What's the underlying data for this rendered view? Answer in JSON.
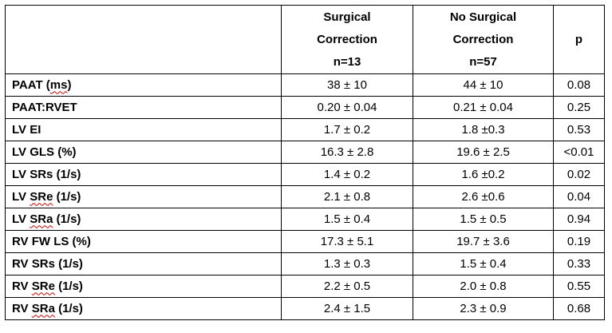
{
  "table": {
    "headers": [
      {
        "lines": [
          ""
        ]
      },
      {
        "lines": [
          "Surgical",
          "Correction",
          "n=13"
        ]
      },
      {
        "lines": [
          "No Surgical",
          "Correction",
          "n=57"
        ]
      },
      {
        "lines": [
          "p"
        ]
      }
    ],
    "rows": [
      {
        "label_pre": "PAAT (",
        "label_squiggle": "ms",
        "label_post": ")",
        "c1": "38 ± 10",
        "c2": "44 ± 10",
        "p": "0.08"
      },
      {
        "label_pre": "PAAT:RVET",
        "label_squiggle": "",
        "label_post": "",
        "c1": "0.20 ± 0.04",
        "c2": "0.21 ± 0.04",
        "p": "0.25"
      },
      {
        "label_pre": "LV EI",
        "label_squiggle": "",
        "label_post": "",
        "c1": "1.7 ± 0.2",
        "c2": "1.8 ±0.3",
        "p": "0.53"
      },
      {
        "label_pre": "LV GLS (%)",
        "label_squiggle": "",
        "label_post": "",
        "c1": "16.3 ± 2.8",
        "c2": "19.6 ± 2.5",
        "p": "<0.01"
      },
      {
        "label_pre": "LV SRs (1/s)",
        "label_squiggle": "",
        "label_post": "",
        "c1": "1.4 ± 0.2",
        "c2": "1.6 ±0.2",
        "p": "0.02"
      },
      {
        "label_pre": "LV ",
        "label_squiggle": "SRe",
        "label_post": " (1/s)",
        "c1": "2.1 ± 0.8",
        "c2": "2.6 ±0.6",
        "p": "0.04"
      },
      {
        "label_pre": "LV ",
        "label_squiggle": "SRa",
        "label_post": " (1/s)",
        "c1": "1.5 ± 0.4",
        "c2": "1.5 ± 0.5",
        "p": "0.94"
      },
      {
        "label_pre": "RV FW LS (%)",
        "label_squiggle": "",
        "label_post": "",
        "c1": "17.3 ± 5.1",
        "c2": "19.7 ± 3.6",
        "p": "0.19"
      },
      {
        "label_pre": "RV SRs (1/s)",
        "label_squiggle": "",
        "label_post": "",
        "c1": "1.3 ± 0.3",
        "c2": "1.5 ± 0.4",
        "p": "0.33"
      },
      {
        "label_pre": "RV ",
        "label_squiggle": "SRe",
        "label_post": " (1/s)",
        "c1": "2.2 ± 0.5",
        "c2": "2.0 ± 0.8",
        "p": "0.55"
      },
      {
        "label_pre": "RV ",
        "label_squiggle": "SRa",
        "label_post": " (1/s)",
        "c1": "2.4 ± 1.5",
        "c2": "2.3 ± 0.9",
        "p": "0.68"
      }
    ]
  }
}
